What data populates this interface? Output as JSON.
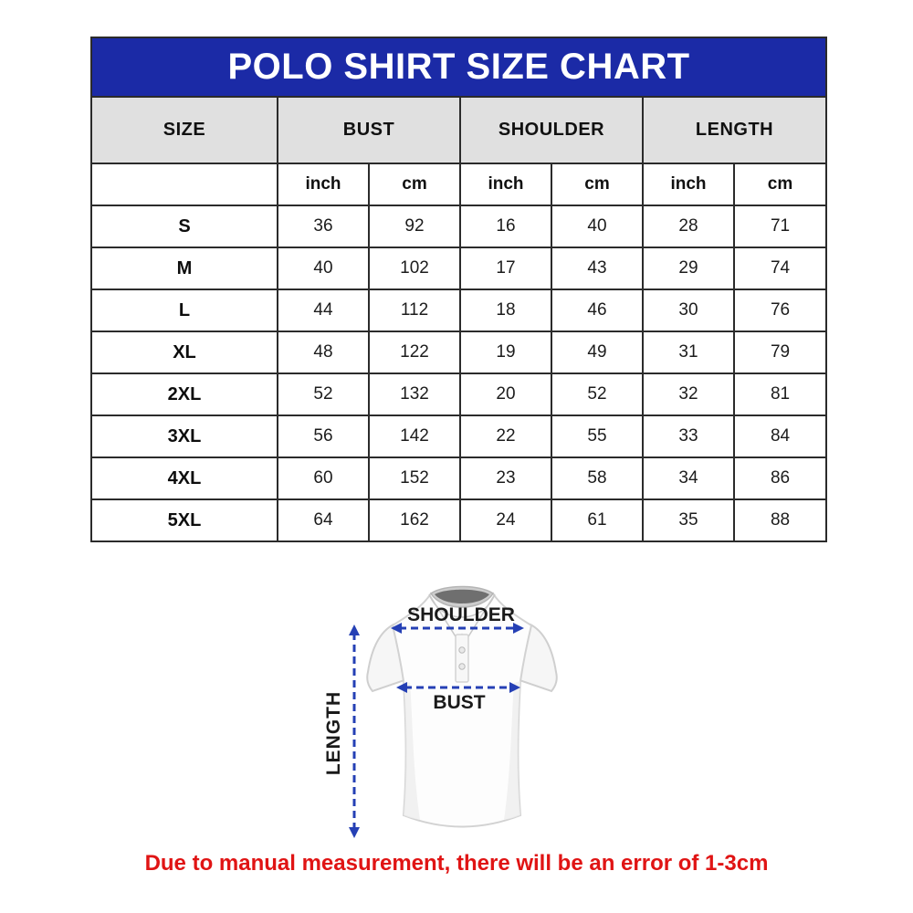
{
  "title": "POLO SHIRT SIZE CHART",
  "table": {
    "size_header": "SIZE",
    "group_headers": [
      "BUST",
      "SHOULDER",
      "LENGTH"
    ],
    "unit_headers": [
      "inch",
      "cm",
      "inch",
      "cm",
      "inch",
      "cm"
    ],
    "rows": [
      {
        "size": "S",
        "values": [
          "36",
          "92",
          "16",
          "40",
          "28",
          "71"
        ]
      },
      {
        "size": "M",
        "values": [
          "40",
          "102",
          "17",
          "43",
          "29",
          "74"
        ]
      },
      {
        "size": "L",
        "values": [
          "44",
          "112",
          "18",
          "46",
          "30",
          "76"
        ]
      },
      {
        "size": "XL",
        "values": [
          "48",
          "122",
          "19",
          "49",
          "31",
          "79"
        ]
      },
      {
        "size": "2XL",
        "values": [
          "52",
          "132",
          "20",
          "52",
          "32",
          "81"
        ]
      },
      {
        "size": "3XL",
        "values": [
          "56",
          "142",
          "22",
          "55",
          "33",
          "84"
        ]
      },
      {
        "size": "4XL",
        "values": [
          "60",
          "152",
          "23",
          "58",
          "34",
          "86"
        ]
      },
      {
        "size": "5XL",
        "values": [
          "64",
          "162",
          "24",
          "61",
          "35",
          "88"
        ]
      }
    ]
  },
  "diagram": {
    "shoulder_label": "SHOULDER",
    "bust_label": "BUST",
    "length_label": "LENGTH"
  },
  "footnote": "Due to manual measurement, there will be an error of 1-3cm",
  "colors": {
    "banner_blue": "#1b2aa6",
    "header_gray": "#e0e0e0",
    "border_dark": "#2b2b2b",
    "arrow_blue": "#2540b5",
    "footnote_red": "#e01414"
  },
  "chart_data": {
    "type": "table",
    "title": "POLO SHIRT SIZE CHART",
    "columns": [
      "SIZE",
      "BUST (inch)",
      "BUST (cm)",
      "SHOULDER (inch)",
      "SHOULDER (cm)",
      "LENGTH (inch)",
      "LENGTH (cm)"
    ],
    "rows": [
      [
        "S",
        36,
        92,
        16,
        40,
        28,
        71
      ],
      [
        "M",
        40,
        102,
        17,
        43,
        29,
        74
      ],
      [
        "L",
        44,
        112,
        18,
        46,
        30,
        76
      ],
      [
        "XL",
        48,
        122,
        19,
        49,
        31,
        79
      ],
      [
        "2XL",
        52,
        132,
        20,
        52,
        32,
        81
      ],
      [
        "3XL",
        56,
        142,
        22,
        55,
        33,
        84
      ],
      [
        "4XL",
        60,
        152,
        23,
        58,
        34,
        86
      ],
      [
        "5XL",
        64,
        162,
        24,
        61,
        35,
        88
      ]
    ],
    "footnote": "Due to manual measurement, there will be an error of 1-3cm"
  }
}
